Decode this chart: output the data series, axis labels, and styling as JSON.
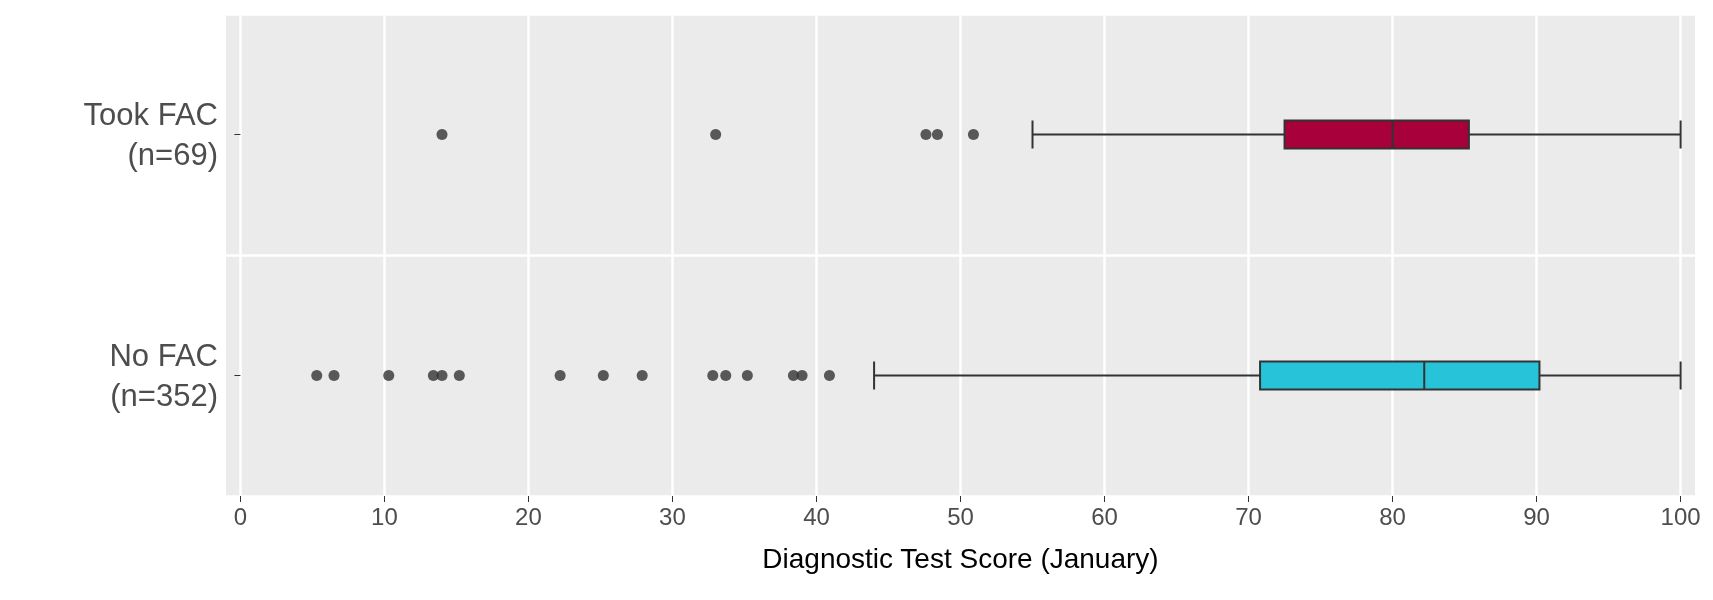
{
  "chart_data": {
    "type": "box",
    "orientation": "horizontal",
    "xlabel": "Diagnostic Test Score (January)",
    "categories": [
      "Took FAC\n(n=69)",
      "No FAC\n(n=352)"
    ],
    "colors": [
      "#a8003a",
      "#27c3d8"
    ],
    "boxes": [
      {
        "low": 55,
        "q1": 72.5,
        "median": 80,
        "q3": 85.3,
        "high": 100,
        "outliers": [
          14,
          33,
          47.6,
          48.4,
          50.9
        ]
      },
      {
        "low": 44,
        "q1": 70.8,
        "median": 82.2,
        "q3": 90.2,
        "high": 100,
        "outliers": [
          5.3,
          6.5,
          10.3,
          13.4,
          14,
          15.2,
          22.2,
          25.2,
          27.9,
          32.8,
          33.7,
          35.2,
          38.4,
          39,
          40.9
        ]
      }
    ],
    "xlim": [
      -1,
      101
    ],
    "xticks": [
      0,
      10,
      20,
      30,
      40,
      50,
      60,
      70,
      80,
      90,
      100
    ],
    "grid": true
  }
}
